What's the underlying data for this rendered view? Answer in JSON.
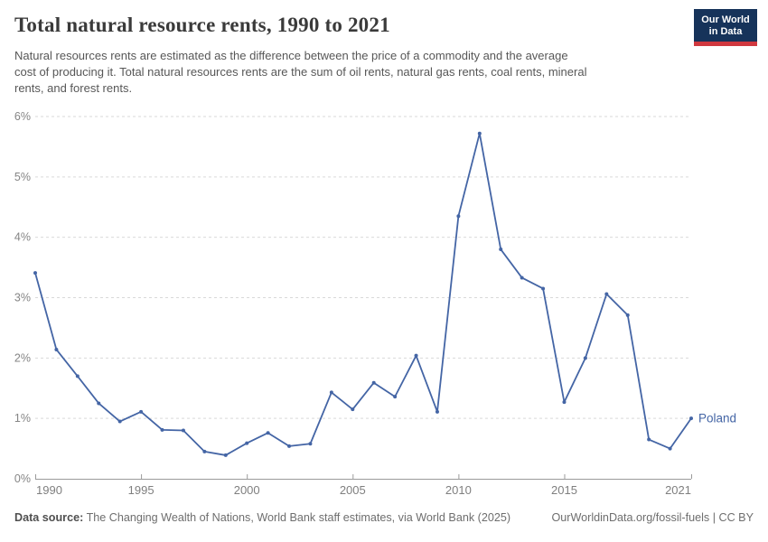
{
  "header": {
    "title": "Total natural resource rents, 1990 to 2021",
    "logo": {
      "line1": "Our World",
      "line2": "in Data"
    }
  },
  "subtitle_lines": [
    "Natural resources rents are estimated as the difference between the price of a commodity and the average",
    "cost of producing it. Total natural resources rents are the sum of oil rents, natural gas rents, coal rents, mineral",
    "rents, and forest rents."
  ],
  "chart_data": {
    "type": "line",
    "title": "Total natural resource rents, 1990 to 2021",
    "xlabel": "",
    "ylabel": "",
    "xlim": [
      1990,
      2021
    ],
    "ylim": [
      0,
      6
    ],
    "yticks": [
      0,
      1,
      2,
      3,
      4,
      5,
      6
    ],
    "ytick_suffix": "%",
    "xticks": [
      1990,
      1995,
      2000,
      2005,
      2010,
      2015,
      2021
    ],
    "grid": "horizontal-dashed",
    "legend_position": "end-of-line-label",
    "series": [
      {
        "name": "Poland",
        "x": [
          1990,
          1991,
          1992,
          1993,
          1994,
          1995,
          1996,
          1997,
          1998,
          1999,
          2000,
          2001,
          2002,
          2003,
          2004,
          2005,
          2006,
          2007,
          2008,
          2009,
          2010,
          2011,
          2012,
          2013,
          2014,
          2015,
          2016,
          2017,
          2018,
          2019,
          2020,
          2021
        ],
        "values": [
          3.41,
          2.14,
          1.7,
          1.25,
          0.95,
          1.11,
          0.81,
          0.8,
          0.45,
          0.39,
          0.59,
          0.76,
          0.54,
          0.58,
          1.43,
          1.15,
          1.59,
          1.36,
          2.04,
          1.11,
          4.35,
          5.72,
          3.8,
          3.33,
          3.15,
          1.27,
          2.0,
          3.06,
          2.71,
          0.65,
          0.5,
          1.0
        ]
      }
    ]
  },
  "footer": {
    "source_label": "Data source:",
    "source_text": " The Changing Wealth of Nations, World Bank staff estimates, via World Bank (2025)",
    "link": "OurWorldinData.org/fossil-fuels | CC BY"
  },
  "colors": {
    "line": "#4465a5",
    "series_label": "#4465a5",
    "grid": "#d9d9d9",
    "axis": "#9a9a9a",
    "ytick_label": "#858585",
    "xtick_label": "#7f7f7f",
    "logo_bg": "#16335a",
    "logo_red": "#d0383f"
  }
}
